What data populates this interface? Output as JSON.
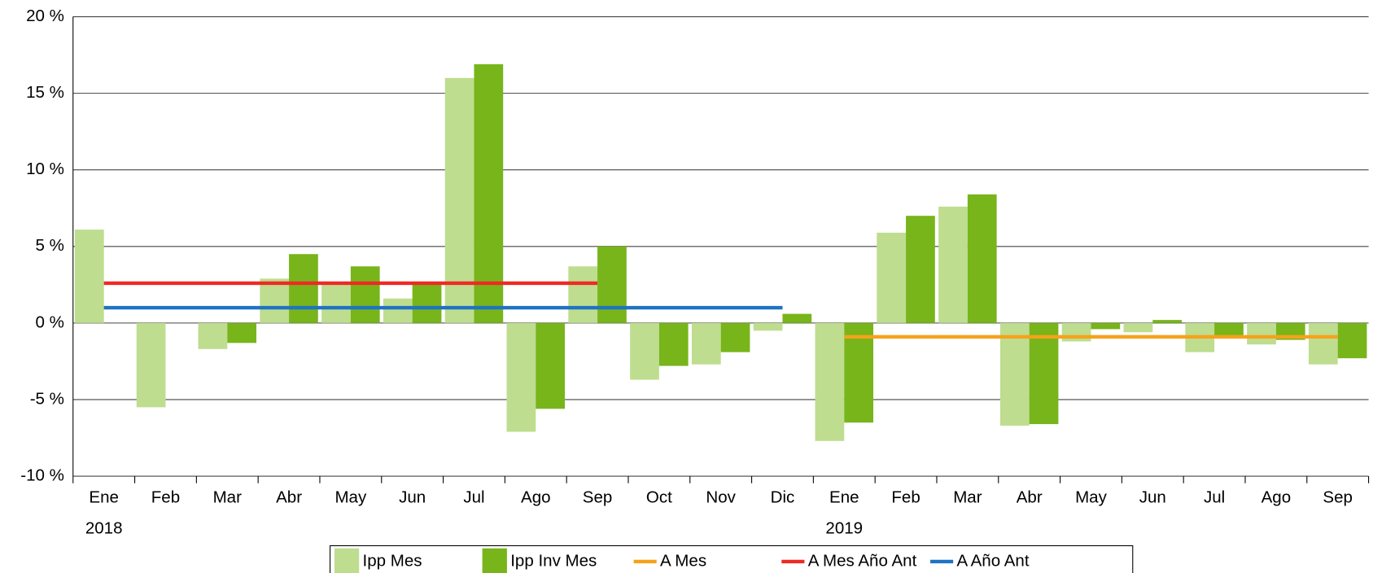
{
  "chart_data": {
    "type": "bar",
    "categories": [
      "Ene",
      "Feb",
      "Mar",
      "Abr",
      "May",
      "Jun",
      "Jul",
      "Ago",
      "Sep",
      "Oct",
      "Nov",
      "Dic",
      "Ene",
      "Feb",
      "Mar",
      "Abr",
      "May",
      "Jun",
      "Jul",
      "Ago",
      "Sep"
    ],
    "year_labels": [
      "2018",
      null,
      null,
      null,
      null,
      null,
      null,
      null,
      null,
      null,
      null,
      null,
      "2019",
      null,
      null,
      null,
      null,
      null,
      null,
      null,
      null
    ],
    "series": [
      {
        "name": "Ipp Mes",
        "kind": "bar",
        "color": "#bedd8f",
        "values": [
          6.1,
          -5.5,
          -1.7,
          2.9,
          2.6,
          1.6,
          16.0,
          -7.1,
          3.7,
          -3.7,
          -2.7,
          -0.5,
          -7.7,
          5.9,
          7.6,
          -6.7,
          -1.2,
          -0.6,
          -1.9,
          -1.4,
          -2.7
        ]
      },
      {
        "name": "Ipp Inv Mes",
        "kind": "bar",
        "color": "#77b51a",
        "values": [
          null,
          null,
          -1.3,
          4.5,
          3.7,
          2.6,
          16.9,
          -5.6,
          5.0,
          -2.8,
          -1.9,
          0.6,
          -6.5,
          7.0,
          8.4,
          -6.6,
          -0.4,
          0.2,
          -0.8,
          -1.1,
          -2.3
        ]
      },
      {
        "name": "A Mes",
        "kind": "line",
        "color": "#f5a21b",
        "values": [
          null,
          null,
          null,
          null,
          null,
          null,
          null,
          null,
          null,
          null,
          null,
          null,
          -0.9,
          -0.9,
          -0.9,
          -0.9,
          -0.9,
          -0.9,
          -0.9,
          -0.9,
          -0.9
        ]
      },
      {
        "name": "A Mes Año Ant",
        "kind": "line",
        "color": "#ee2a24",
        "values": [
          2.6,
          2.6,
          2.6,
          2.6,
          2.6,
          2.6,
          2.6,
          2.6,
          2.6,
          null,
          null,
          null,
          null,
          null,
          null,
          null,
          null,
          null,
          null,
          null,
          null
        ]
      },
      {
        "name": "A Año Ant",
        "kind": "line",
        "color": "#1f73c4",
        "values": [
          1.0,
          1.0,
          1.0,
          1.0,
          1.0,
          1.0,
          1.0,
          1.0,
          1.0,
          1.0,
          1.0,
          1.0,
          null,
          null,
          null,
          null,
          null,
          null,
          null,
          null,
          null
        ]
      }
    ],
    "ylim": [
      -10,
      20
    ],
    "yticks": [
      {
        "value": -10,
        "label": "-10 %"
      },
      {
        "value": -5,
        "label": "-5 %"
      },
      {
        "value": 0,
        "label": "0 %"
      },
      {
        "value": 5,
        "label": "5 %"
      },
      {
        "value": 10,
        "label": "10 %"
      },
      {
        "value": 15,
        "label": "15 %"
      },
      {
        "value": 20,
        "label": "20 %"
      }
    ],
    "grid": true,
    "legend": "bottom"
  }
}
